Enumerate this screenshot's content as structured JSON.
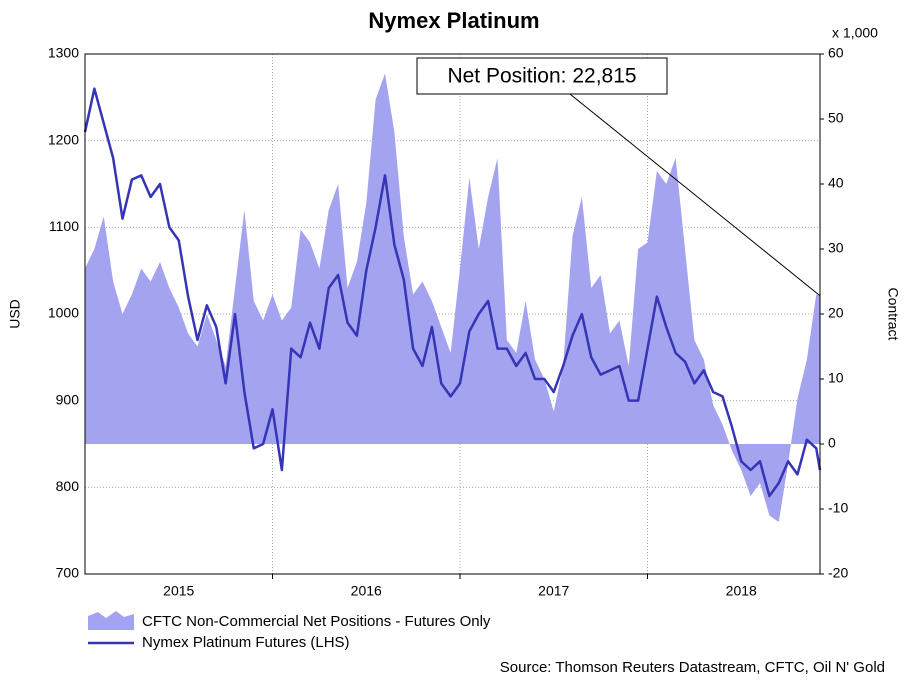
{
  "chart_data": {
    "type": "line",
    "title": "Nymex Platinum",
    "ylabel": "USD",
    "y2label": "Contract",
    "y2unit": "x 1,000",
    "source": "Source: Thomson Reuters Datastream, CFTC, Oil N' Gold",
    "annotation": "Net Position: 22,815",
    "x": [
      2015.0,
      2015.05,
      2015.1,
      2015.15,
      2015.2,
      2015.25,
      2015.3,
      2015.35,
      2015.4,
      2015.45,
      2015.5,
      2015.55,
      2015.6,
      2015.65,
      2015.7,
      2015.75,
      2015.8,
      2015.85,
      2015.9,
      2015.95,
      2016.0,
      2016.05,
      2016.1,
      2016.15,
      2016.2,
      2016.25,
      2016.3,
      2016.35,
      2016.4,
      2016.45,
      2016.5,
      2016.55,
      2016.6,
      2016.65,
      2016.7,
      2016.75,
      2016.8,
      2016.85,
      2016.9,
      2016.95,
      2017.0,
      2017.05,
      2017.1,
      2017.15,
      2017.2,
      2017.25,
      2017.3,
      2017.35,
      2017.4,
      2017.45,
      2017.5,
      2017.55,
      2017.6,
      2017.65,
      2017.7,
      2017.75,
      2017.8,
      2017.85,
      2017.9,
      2017.95,
      2018.0,
      2018.05,
      2018.1,
      2018.15,
      2018.2,
      2018.25,
      2018.3,
      2018.35,
      2018.4,
      2018.45,
      2018.5,
      2018.55,
      2018.6,
      2018.65,
      2018.7,
      2018.75,
      2018.8,
      2018.85,
      2018.9,
      2018.92
    ],
    "series": [
      {
        "name": "CFTC Non-Commercial Net Positions - Futures Only",
        "type": "area",
        "axis": "y2",
        "color": "#a3a3f0",
        "values": [
          27,
          30,
          35,
          25,
          20,
          23,
          27,
          25,
          28,
          24,
          21,
          17,
          15,
          20,
          16,
          12,
          24,
          36,
          22,
          19,
          23,
          19,
          21,
          33,
          31,
          27,
          36,
          40,
          24,
          28,
          37,
          53,
          57,
          48,
          32,
          23,
          25,
          22,
          18,
          14,
          27,
          41,
          30,
          38,
          44,
          16,
          14,
          22,
          13,
          10,
          5,
          12,
          32,
          38,
          24,
          26,
          17,
          19,
          12,
          30,
          31,
          42,
          40,
          44,
          30,
          16,
          13,
          6,
          3,
          -1,
          -4,
          -8,
          -6,
          -11,
          -12,
          -3,
          7,
          13,
          23,
          22.815
        ]
      },
      {
        "name": "Nymex Platinum Futures (LHS)",
        "type": "line",
        "axis": "y",
        "color": "#3535b5",
        "values": [
          1210,
          1260,
          1220,
          1180,
          1110,
          1155,
          1160,
          1135,
          1150,
          1100,
          1085,
          1020,
          970,
          1010,
          985,
          920,
          1000,
          910,
          845,
          850,
          890,
          820,
          960,
          950,
          990,
          960,
          1030,
          1045,
          990,
          975,
          1050,
          1100,
          1160,
          1080,
          1040,
          960,
          940,
          985,
          920,
          905,
          920,
          980,
          1000,
          1015,
          960,
          960,
          940,
          955,
          925,
          925,
          910,
          940,
          975,
          1000,
          950,
          930,
          935,
          940,
          900,
          900,
          960,
          1020,
          985,
          955,
          945,
          920,
          935,
          910,
          905,
          870,
          830,
          820,
          830,
          790,
          805,
          830,
          815,
          855,
          845,
          820
        ]
      }
    ],
    "xlim": [
      2015,
      2018.92
    ],
    "xticks": [
      {
        "value": 2015.5,
        "label": "2015"
      },
      {
        "value": 2016.5,
        "label": "2016"
      },
      {
        "value": 2017.5,
        "label": "2017"
      },
      {
        "value": 2018.5,
        "label": "2018"
      }
    ],
    "xgrid": [
      2016,
      2017,
      2018
    ],
    "ylim": [
      700,
      1300
    ],
    "yticks": [
      700,
      800,
      900,
      1000,
      1100,
      1200,
      1300
    ],
    "y2lim": [
      -20,
      60
    ],
    "y2ticks": [
      -20,
      -10,
      0,
      10,
      20,
      30,
      40,
      50,
      60
    ],
    "grid": true
  }
}
